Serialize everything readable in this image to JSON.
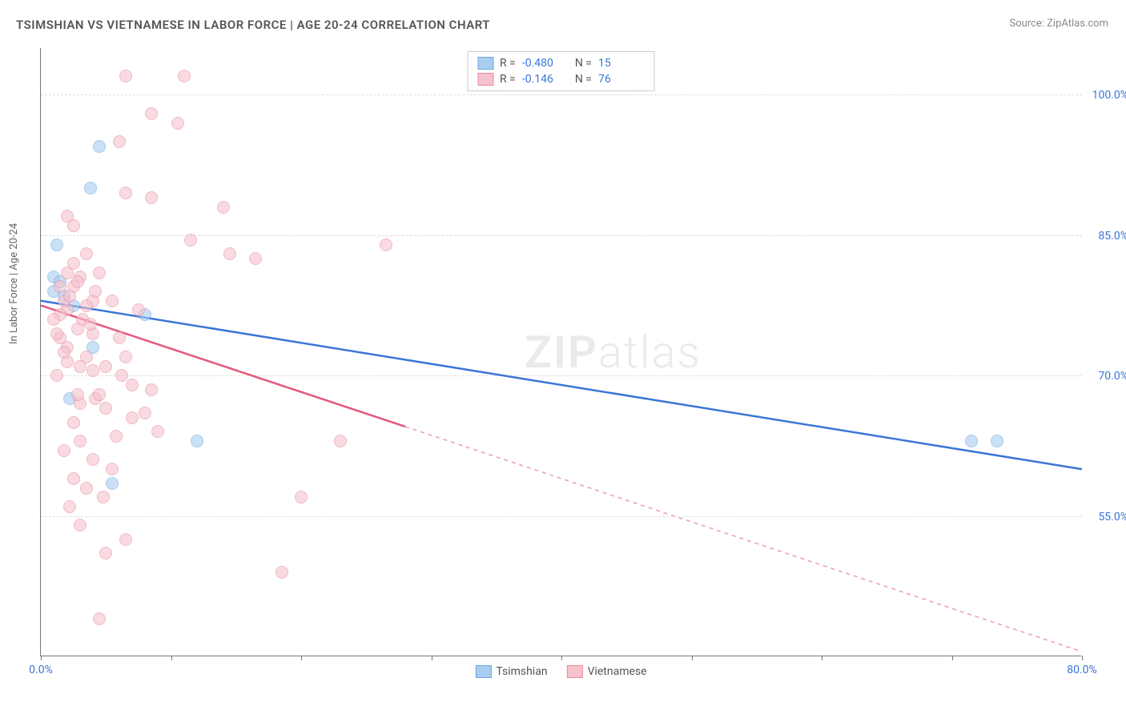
{
  "chart": {
    "type": "scatter",
    "title": "TSIMSHIAN VS VIETNAMESE IN LABOR FORCE | AGE 20-24 CORRELATION CHART",
    "source": "Source: ZipAtlas.com",
    "watermark": "ZIPatlas",
    "y_axis_label": "In Labor Force | Age 20-24",
    "background_color": "#ffffff",
    "grid_color": "#dddddd",
    "axis_color": "#777777",
    "tick_label_color": "#3a76d6",
    "title_fontsize": 15,
    "label_fontsize": 13,
    "xlim": [
      0,
      80
    ],
    "ylim": [
      40,
      105
    ],
    "y_ticks": [
      {
        "value": 100,
        "label": "100.0%"
      },
      {
        "value": 85,
        "label": "85.0%"
      },
      {
        "value": 70,
        "label": "70.0%"
      },
      {
        "value": 55,
        "label": "55.0%"
      }
    ],
    "x_ticks": [
      {
        "value": 0,
        "label": "0.0%"
      },
      {
        "value": 10,
        "label": ""
      },
      {
        "value": 20,
        "label": ""
      },
      {
        "value": 30,
        "label": ""
      },
      {
        "value": 40,
        "label": ""
      },
      {
        "value": 50,
        "label": ""
      },
      {
        "value": 60,
        "label": ""
      },
      {
        "value": 70,
        "label": ""
      },
      {
        "value": 80,
        "label": "80.0%"
      }
    ],
    "series": [
      {
        "name": "Tsimshian",
        "color_fill": "#a8cdf0",
        "color_stroke": "#6fa8e0",
        "line_color": "#3a76d6",
        "R": "-0.480",
        "N": "15",
        "line": {
          "x1": 0,
          "y1": 78,
          "x2": 80,
          "y2": 60,
          "solid_until_x": 80
        },
        "points": [
          {
            "x": 1.2,
            "y": 84
          },
          {
            "x": 4.5,
            "y": 94.5
          },
          {
            "x": 3.8,
            "y": 90
          },
          {
            "x": 1.0,
            "y": 80.5
          },
          {
            "x": 1.5,
            "y": 80
          },
          {
            "x": 1.8,
            "y": 78.5
          },
          {
            "x": 4.0,
            "y": 73
          },
          {
            "x": 8.0,
            "y": 76.5
          },
          {
            "x": 2.2,
            "y": 67.5
          },
          {
            "x": 5.5,
            "y": 58.5
          },
          {
            "x": 12.0,
            "y": 63
          },
          {
            "x": 71.5,
            "y": 63
          },
          {
            "x": 73.5,
            "y": 63
          },
          {
            "x": 1.0,
            "y": 79
          },
          {
            "x": 2.5,
            "y": 77.5
          }
        ]
      },
      {
        "name": "Vietnamese",
        "color_fill": "#f6c2ce",
        "color_stroke": "#e98ba0",
        "line_color": "#e05a7a",
        "R": "-0.146",
        "N": "76",
        "line": {
          "x1": 0,
          "y1": 77.5,
          "x2": 80,
          "y2": 40.5,
          "solid_until_x": 28
        },
        "points": [
          {
            "x": 6.5,
            "y": 102
          },
          {
            "x": 11.0,
            "y": 102
          },
          {
            "x": 6.0,
            "y": 95
          },
          {
            "x": 8.5,
            "y": 98
          },
          {
            "x": 10.5,
            "y": 97
          },
          {
            "x": 6.5,
            "y": 89.5
          },
          {
            "x": 8.5,
            "y": 89
          },
          {
            "x": 14.0,
            "y": 88
          },
          {
            "x": 11.5,
            "y": 84.5
          },
          {
            "x": 2.0,
            "y": 87
          },
          {
            "x": 2.5,
            "y": 86
          },
          {
            "x": 14.5,
            "y": 83
          },
          {
            "x": 16.5,
            "y": 82.5
          },
          {
            "x": 26.5,
            "y": 84
          },
          {
            "x": 2.0,
            "y": 81
          },
          {
            "x": 3.0,
            "y": 80.5
          },
          {
            "x": 2.5,
            "y": 79.5
          },
          {
            "x": 4.5,
            "y": 81
          },
          {
            "x": 4.0,
            "y": 78
          },
          {
            "x": 3.5,
            "y": 77.5
          },
          {
            "x": 2.0,
            "y": 77
          },
          {
            "x": 1.5,
            "y": 76.5
          },
          {
            "x": 4.0,
            "y": 74.5
          },
          {
            "x": 6.0,
            "y": 74
          },
          {
            "x": 6.5,
            "y": 72
          },
          {
            "x": 4.0,
            "y": 70.5
          },
          {
            "x": 7.0,
            "y": 69
          },
          {
            "x": 8.5,
            "y": 68.5
          },
          {
            "x": 3.0,
            "y": 67
          },
          {
            "x": 5.0,
            "y": 66.5
          },
          {
            "x": 2.5,
            "y": 65
          },
          {
            "x": 7.0,
            "y": 65.5
          },
          {
            "x": 9.0,
            "y": 64
          },
          {
            "x": 4.0,
            "y": 61
          },
          {
            "x": 5.5,
            "y": 60
          },
          {
            "x": 3.5,
            "y": 58
          },
          {
            "x": 23.0,
            "y": 63
          },
          {
            "x": 20.0,
            "y": 57
          },
          {
            "x": 3.0,
            "y": 54
          },
          {
            "x": 6.5,
            "y": 52.5
          },
          {
            "x": 5.0,
            "y": 51
          },
          {
            "x": 18.5,
            "y": 49
          },
          {
            "x": 4.5,
            "y": 44
          },
          {
            "x": 1.8,
            "y": 78
          },
          {
            "x": 2.2,
            "y": 78.5
          },
          {
            "x": 3.2,
            "y": 76
          },
          {
            "x": 2.8,
            "y": 75
          },
          {
            "x": 1.5,
            "y": 74
          },
          {
            "x": 2.0,
            "y": 73
          },
          {
            "x": 3.5,
            "y": 72
          },
          {
            "x": 5.0,
            "y": 71
          },
          {
            "x": 1.2,
            "y": 70
          },
          {
            "x": 2.8,
            "y": 68
          },
          {
            "x": 4.2,
            "y": 67.5
          },
          {
            "x": 3.0,
            "y": 63
          },
          {
            "x": 1.8,
            "y": 62
          },
          {
            "x": 2.5,
            "y": 59
          },
          {
            "x": 4.8,
            "y": 57
          },
          {
            "x": 1.5,
            "y": 79.5
          },
          {
            "x": 2.8,
            "y": 80
          },
          {
            "x": 4.2,
            "y": 79
          },
          {
            "x": 5.5,
            "y": 78
          },
          {
            "x": 3.8,
            "y": 75.5
          },
          {
            "x": 2.0,
            "y": 71.5
          },
          {
            "x": 6.2,
            "y": 70
          },
          {
            "x": 8.0,
            "y": 66
          },
          {
            "x": 2.5,
            "y": 82
          },
          {
            "x": 3.5,
            "y": 83
          },
          {
            "x": 1.0,
            "y": 76
          },
          {
            "x": 1.2,
            "y": 74.5
          },
          {
            "x": 1.8,
            "y": 72.5
          },
          {
            "x": 3.0,
            "y": 71
          },
          {
            "x": 4.5,
            "y": 68
          },
          {
            "x": 5.8,
            "y": 63.5
          },
          {
            "x": 2.2,
            "y": 56
          },
          {
            "x": 7.5,
            "y": 77
          }
        ]
      }
    ],
    "legend_labels": [
      "Tsimshian",
      "Vietnamese"
    ]
  }
}
